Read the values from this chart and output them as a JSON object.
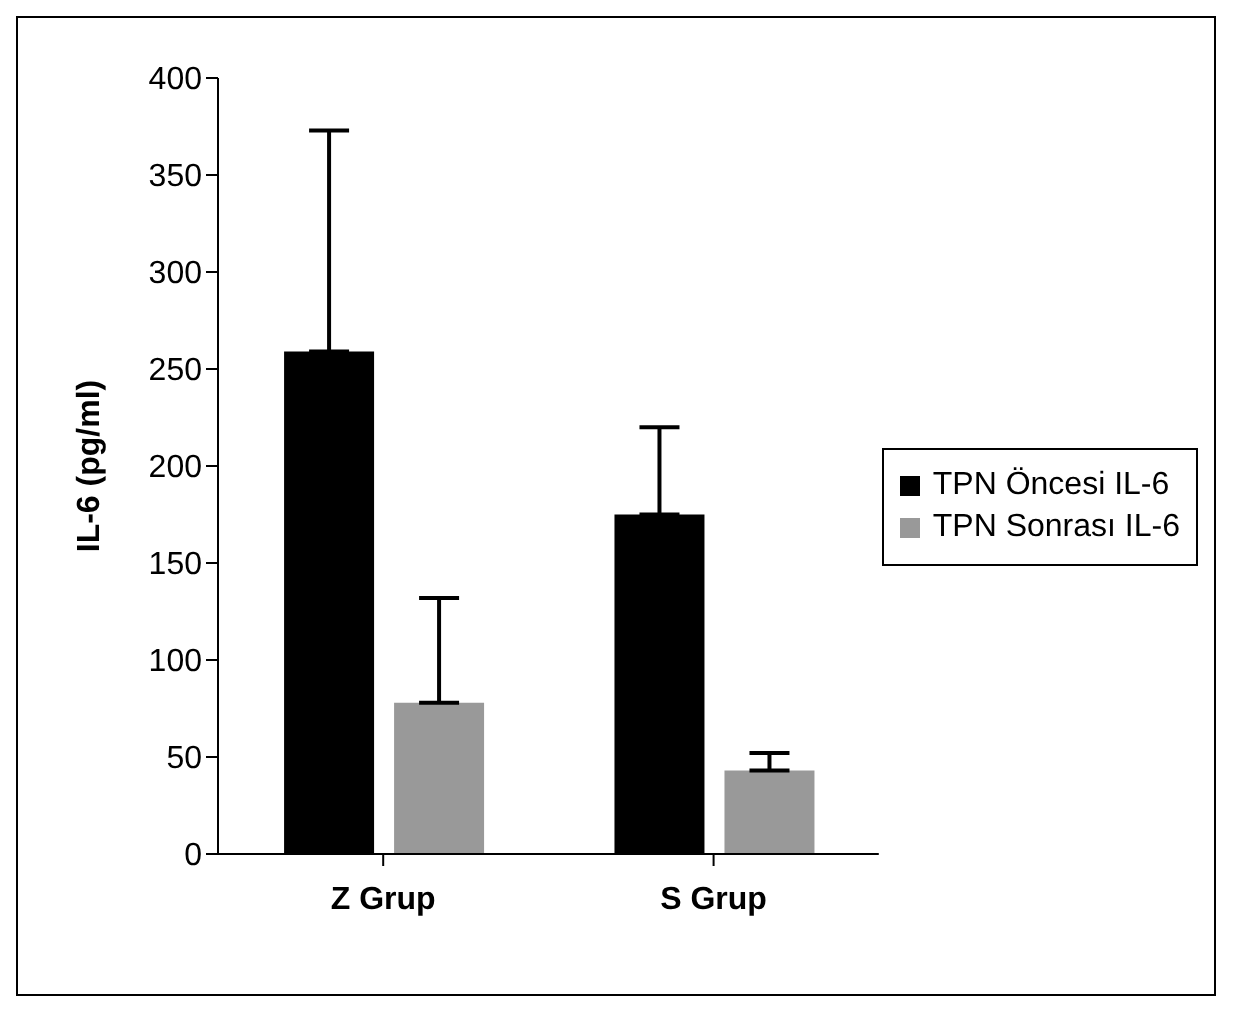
{
  "chart_data": {
    "type": "bar",
    "ylabel": "IL-6 (pg/ml)",
    "categories": [
      "Z Grup",
      "S Grup"
    ],
    "series": [
      {
        "name": "TPN Öncesi IL-6",
        "color": "#000000",
        "values": [
          259,
          175
        ],
        "errors": [
          [
            259,
            373
          ],
          [
            175,
            220
          ]
        ]
      },
      {
        "name": "TPN Sonrası IL-6",
        "color": "#999999",
        "values": [
          78,
          43
        ],
        "errors": [
          [
            78,
            132
          ],
          [
            43,
            52
          ]
        ]
      }
    ],
    "ylim": [
      0,
      400
    ],
    "yticks": [
      0,
      50,
      100,
      150,
      200,
      250,
      300,
      350,
      400
    ],
    "grid": false,
    "legend": "right"
  }
}
